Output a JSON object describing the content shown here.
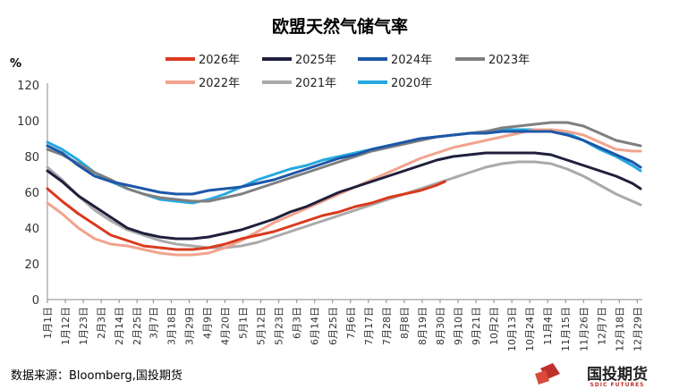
{
  "chart_data": {
    "type": "line",
    "title": "欧盟天然气储气率",
    "ylabel": "%",
    "xlabel": "",
    "ylim": [
      0,
      120
    ],
    "yticks": [
      0,
      20,
      40,
      60,
      80,
      100,
      120
    ],
    "xlim": [
      1,
      365
    ],
    "grid": false,
    "legend_position": "top",
    "x_ticks": [
      {
        "day": 1,
        "label": "1月1日"
      },
      {
        "day": 12,
        "label": "1月12日"
      },
      {
        "day": 23,
        "label": "1月23日"
      },
      {
        "day": 34,
        "label": "2月3日"
      },
      {
        "day": 45,
        "label": "2月14日"
      },
      {
        "day": 56,
        "label": "2月25日"
      },
      {
        "day": 66,
        "label": "3月7日"
      },
      {
        "day": 77,
        "label": "3月18日"
      },
      {
        "day": 88,
        "label": "3月29日"
      },
      {
        "day": 99,
        "label": "4月9日"
      },
      {
        "day": 110,
        "label": "4月20日"
      },
      {
        "day": 121,
        "label": "5月1日"
      },
      {
        "day": 132,
        "label": "5月12日"
      },
      {
        "day": 143,
        "label": "5月23日"
      },
      {
        "day": 154,
        "label": "6月3日"
      },
      {
        "day": 165,
        "label": "6月14日"
      },
      {
        "day": 176,
        "label": "6月25日"
      },
      {
        "day": 187,
        "label": "7月6日"
      },
      {
        "day": 198,
        "label": "7月17日"
      },
      {
        "day": 209,
        "label": "7月28日"
      },
      {
        "day": 220,
        "label": "8月8日"
      },
      {
        "day": 231,
        "label": "8月19日"
      },
      {
        "day": 242,
        "label": "8月30日"
      },
      {
        "day": 253,
        "label": "9月10日"
      },
      {
        "day": 264,
        "label": "9月21日"
      },
      {
        "day": 275,
        "label": "10月2日"
      },
      {
        "day": 286,
        "label": "10月13日"
      },
      {
        "day": 297,
        "label": "10月24日"
      },
      {
        "day": 308,
        "label": "11月4日"
      },
      {
        "day": 319,
        "label": "11月15日"
      },
      {
        "day": 330,
        "label": "11月26日"
      },
      {
        "day": 341,
        "label": "12月7日"
      },
      {
        "day": 352,
        "label": "12月18日"
      },
      {
        "day": 363,
        "label": "12月29日"
      }
    ],
    "series": [
      {
        "name": "2026年",
        "color": "#d93a1f",
        "width": 3,
        "x": [
          1,
          10,
          20,
          30,
          40,
          50,
          60,
          70,
          80,
          90,
          100,
          110,
          120,
          130,
          140,
          150,
          160,
          170,
          180,
          190,
          200,
          210,
          220,
          230,
          240,
          245
        ],
        "y": [
          62,
          55,
          48,
          42,
          36,
          33,
          30,
          29,
          28,
          28,
          29,
          31,
          34,
          36,
          38,
          41,
          44,
          47,
          49,
          52,
          54,
          57,
          59,
          61,
          64,
          66
        ]
      },
      {
        "name": "2025年",
        "color": "#1f1f3d",
        "width": 3,
        "x": [
          1,
          10,
          20,
          30,
          40,
          50,
          60,
          70,
          80,
          90,
          100,
          110,
          120,
          130,
          140,
          150,
          160,
          170,
          180,
          190,
          200,
          210,
          220,
          230,
          240,
          250,
          260,
          270,
          280,
          290,
          300,
          310,
          320,
          330,
          340,
          350,
          360,
          365
        ],
        "y": [
          72,
          66,
          58,
          52,
          46,
          40,
          37,
          35,
          34,
          34,
          35,
          37,
          39,
          42,
          45,
          49,
          52,
          56,
          60,
          63,
          66,
          69,
          72,
          75,
          78,
          80,
          81,
          82,
          82,
          82,
          82,
          81,
          78,
          75,
          72,
          69,
          65,
          62
        ]
      },
      {
        "name": "2024年",
        "color": "#1d57a8",
        "width": 3,
        "x": [
          1,
          10,
          20,
          30,
          40,
          50,
          60,
          70,
          80,
          90,
          100,
          110,
          120,
          130,
          140,
          150,
          160,
          170,
          180,
          190,
          200,
          210,
          220,
          230,
          240,
          250,
          260,
          270,
          280,
          290,
          300,
          310,
          320,
          330,
          340,
          350,
          360,
          365
        ],
        "y": [
          86,
          82,
          75,
          69,
          66,
          64,
          62,
          60,
          59,
          59,
          61,
          62,
          63,
          65,
          67,
          70,
          73,
          76,
          79,
          81,
          84,
          86,
          88,
          90,
          91,
          92,
          93,
          93,
          94,
          94,
          94,
          94,
          92,
          89,
          85,
          81,
          77,
          74
        ]
      },
      {
        "name": "2023年",
        "color": "#7f7f7f",
        "width": 3,
        "x": [
          1,
          10,
          20,
          30,
          40,
          50,
          60,
          70,
          80,
          90,
          100,
          110,
          120,
          130,
          140,
          150,
          160,
          170,
          180,
          190,
          200,
          210,
          220,
          230,
          240,
          250,
          260,
          270,
          280,
          290,
          300,
          310,
          320,
          330,
          340,
          350,
          360,
          365
        ],
        "y": [
          84,
          81,
          76,
          71,
          67,
          62,
          59,
          57,
          56,
          55,
          55,
          57,
          59,
          62,
          65,
          68,
          71,
          74,
          77,
          80,
          83,
          85,
          87,
          89,
          91,
          92,
          93,
          94,
          96,
          97,
          98,
          99,
          99,
          97,
          93,
          89,
          87,
          86
        ]
      },
      {
        "name": "2022年",
        "color": "#f2a38d",
        "width": 3,
        "x": [
          1,
          10,
          20,
          30,
          40,
          50,
          60,
          70,
          80,
          90,
          100,
          110,
          120,
          130,
          140,
          150,
          160,
          170,
          180,
          190,
          200,
          210,
          220,
          230,
          240,
          250,
          260,
          270,
          280,
          290,
          300,
          310,
          320,
          330,
          340,
          350,
          360,
          365
        ],
        "y": [
          54,
          48,
          40,
          34,
          31,
          30,
          28,
          26,
          25,
          25,
          26,
          29,
          33,
          38,
          43,
          47,
          51,
          55,
          59,
          63,
          67,
          71,
          75,
          79,
          82,
          85,
          87,
          89,
          91,
          93,
          95,
          95,
          94,
          92,
          88,
          84,
          83,
          83
        ]
      },
      {
        "name": "2021年",
        "color": "#aaaaaa",
        "width": 3,
        "x": [
          1,
          10,
          20,
          30,
          40,
          50,
          60,
          70,
          80,
          90,
          100,
          110,
          120,
          130,
          140,
          150,
          160,
          170,
          180,
          190,
          200,
          210,
          220,
          230,
          240,
          250,
          260,
          270,
          280,
          290,
          300,
          310,
          320,
          330,
          340,
          350,
          360,
          365
        ],
        "y": [
          74,
          67,
          58,
          50,
          44,
          39,
          36,
          33,
          31,
          30,
          29,
          29,
          30,
          32,
          35,
          38,
          41,
          44,
          47,
          50,
          53,
          56,
          59,
          62,
          65,
          68,
          71,
          74,
          76,
          77,
          77,
          76,
          73,
          69,
          64,
          59,
          55,
          53
        ]
      },
      {
        "name": "2020年",
        "color": "#25a9e0",
        "width": 3,
        "x": [
          1,
          10,
          20,
          30,
          40,
          50,
          60,
          70,
          80,
          90,
          100,
          110,
          120,
          130,
          140,
          150,
          160,
          170,
          180,
          190,
          200,
          210,
          220,
          230,
          240,
          250,
          260,
          270,
          280,
          290,
          300,
          310,
          320,
          330,
          340,
          350,
          360,
          365
        ],
        "y": [
          88,
          84,
          78,
          71,
          66,
          62,
          59,
          56,
          55,
          54,
          56,
          59,
          63,
          67,
          70,
          73,
          75,
          78,
          80,
          82,
          84,
          86,
          88,
          90,
          91,
          92,
          93,
          94,
          95,
          95,
          95,
          95,
          93,
          89,
          84,
          80,
          75,
          72
        ]
      }
    ]
  },
  "source": "数据来源：Bloomberg,国投期货",
  "brand": {
    "name": "国投期货",
    "sub": "SDIC FUTURES"
  }
}
